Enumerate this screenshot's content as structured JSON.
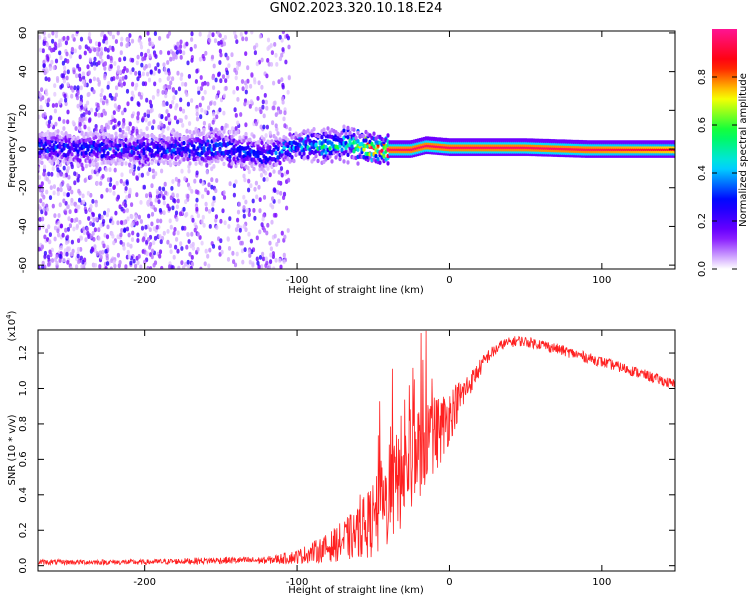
{
  "title": "GN02.2023.320.10.18.E24",
  "chart_data": [
    {
      "type": "heatmap",
      "xlabel": "Height of straight line (km)",
      "ylabel": "Frequency (Hz)",
      "xlim": [
        -270,
        148
      ],
      "ylim": [
        -62,
        61
      ],
      "xticks": [
        -200,
        -100,
        0,
        100
      ],
      "xtick_labels": [
        "-200",
        "-100",
        "0",
        "100"
      ],
      "yticks": [
        -60,
        -40,
        -20,
        0,
        20,
        40,
        60
      ],
      "ytick_labels": [
        "-60",
        "-40",
        "-20",
        "0",
        "20",
        "40",
        "60"
      ],
      "colorbar": {
        "label": "Normalized spectral amplitude",
        "range": [
          0,
          1
        ],
        "ticks": [
          0.0,
          0.2,
          0.4,
          0.6,
          0.8
        ],
        "tick_labels": [
          "0.0",
          "0.2",
          "0.4",
          "0.6",
          "0.8"
        ],
        "colormap": [
          "#ffffff",
          "#7a00ff",
          "#0000ff",
          "#00e0ff",
          "#00ff40",
          "#ffff00",
          "#ff0000",
          "#ff1493"
        ]
      },
      "ridge": {
        "description_points_x": [
          -270,
          -200,
          -150,
          -120,
          -100,
          -80,
          -65,
          -50,
          -40,
          -25,
          -15,
          0,
          50,
          90,
          148
        ],
        "frequency_center_hz": [
          1,
          0,
          1,
          -3,
          2,
          2,
          3,
          0,
          0,
          0,
          2,
          1,
          1,
          0,
          0
        ],
        "peak_amplitude": [
          0.3,
          0.3,
          0.35,
          0.3,
          0.4,
          0.5,
          0.55,
          0.85,
          0.95,
          0.95,
          0.95,
          0.95,
          0.95,
          0.95,
          0.9
        ]
      },
      "scatter_region_x": [
        -270,
        -105
      ],
      "grid": false
    },
    {
      "type": "line",
      "xlabel": "Height of straight line (km)",
      "ylabel": "SNR (10 * v/v)",
      "y_multiplier": "(x10",
      "y_multiplier_exp": "4",
      "xlim": [
        -270,
        148
      ],
      "ylim": [
        -0.03,
        1.33
      ],
      "xticks": [
        -200,
        -100,
        0,
        100
      ],
      "xtick_labels": [
        "-200",
        "-100",
        "0",
        "100"
      ],
      "yticks": [
        0.0,
        0.2,
        0.4,
        0.6,
        0.8,
        1.0,
        1.2
      ],
      "ytick_labels": [
        "0.0",
        "0.2",
        "0.4",
        "0.6",
        "0.8",
        "1.0",
        "1.2"
      ],
      "series": [
        {
          "color": "#ff2020",
          "x": [
            -270,
            -200,
            -150,
            -120,
            -100,
            -80,
            -60,
            -45,
            -35,
            -25,
            -15,
            -5,
            5,
            15,
            25,
            35,
            45,
            60,
            80,
            100,
            120,
            148
          ],
          "y": [
            0.02,
            0.02,
            0.03,
            0.03,
            0.05,
            0.1,
            0.18,
            0.3,
            0.45,
            0.6,
            0.7,
            0.78,
            0.92,
            1.05,
            1.18,
            1.25,
            1.27,
            1.25,
            1.2,
            1.15,
            1.1,
            1.02
          ],
          "noise": [
            0.015,
            0.015,
            0.02,
            0.02,
            0.04,
            0.08,
            0.15,
            0.25,
            0.3,
            0.3,
            0.25,
            0.2,
            0.12,
            0.06,
            0.04,
            0.03,
            0.03,
            0.03,
            0.03,
            0.03,
            0.03,
            0.03
          ]
        }
      ],
      "grid": false
    }
  ]
}
